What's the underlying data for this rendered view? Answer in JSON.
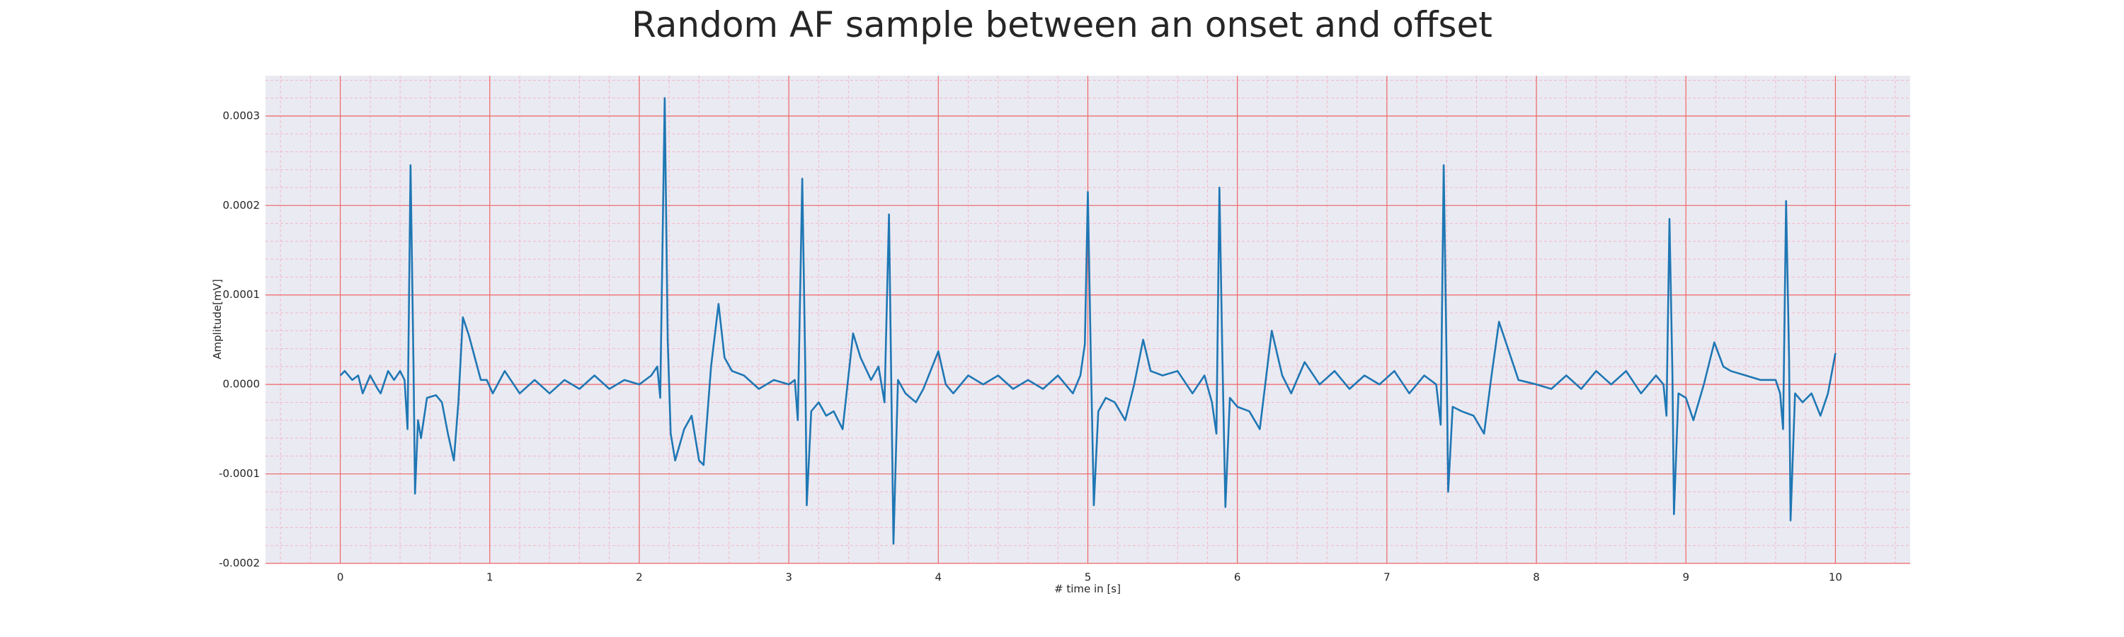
{
  "chart_data": {
    "type": "line",
    "title": "Random AF sample between an onset and offset",
    "xlabel": "# time in [s]",
    "ylabel": "Amplitude[mV]",
    "color": "#1f77b4",
    "background": "#eaeaf2",
    "grid": true,
    "grid_color": "#ee6666",
    "minor_grid": true,
    "minor_grid_color": "#f2b8c6",
    "xlim": [
      -0.5,
      10.5
    ],
    "ylim": [
      -0.0002,
      0.000345
    ],
    "xticks": [
      0,
      1,
      2,
      3,
      4,
      5,
      6,
      7,
      8,
      9,
      10
    ],
    "yticks": [
      {
        "value": -0.0002,
        "label": "-0.0002"
      },
      {
        "value": -0.0001,
        "label": "-0.0001"
      },
      {
        "value": 0,
        "label": "0.0000"
      },
      {
        "value": 0.0001,
        "label": "0.0001"
      },
      {
        "value": 0.0002,
        "label": "0.0002"
      },
      {
        "value": 0.0003,
        "label": "0.0003"
      }
    ],
    "x": [
      0,
      0.03,
      0.08,
      0.12,
      0.15,
      0.2,
      0.25,
      0.27,
      0.32,
      0.36,
      0.4,
      0.43,
      0.45,
      0.47,
      0.49,
      0.5,
      0.52,
      0.54,
      0.58,
      0.64,
      0.68,
      0.72,
      0.76,
      0.79,
      0.82,
      0.86,
      0.9,
      0.94,
      0.98,
      1.02,
      1.1,
      1.2,
      1.3,
      1.4,
      1.5,
      1.6,
      1.7,
      1.8,
      1.9,
      2.0,
      2.08,
      2.12,
      2.14,
      2.17,
      2.19,
      2.21,
      2.24,
      2.3,
      2.35,
      2.4,
      2.43,
      2.48,
      2.53,
      2.57,
      2.62,
      2.7,
      2.8,
      2.9,
      3.0,
      3.04,
      3.06,
      3.09,
      3.11,
      3.12,
      3.15,
      3.2,
      3.25,
      3.3,
      3.36,
      3.43,
      3.48,
      3.55,
      3.6,
      3.64,
      3.67,
      3.7,
      3.73,
      3.78,
      3.85,
      3.9,
      4.0,
      4.05,
      4.1,
      4.2,
      4.3,
      4.4,
      4.5,
      4.6,
      4.7,
      4.8,
      4.9,
      4.95,
      4.98,
      5.0,
      5.02,
      5.04,
      5.07,
      5.12,
      5.18,
      5.25,
      5.31,
      5.37,
      5.42,
      5.5,
      5.6,
      5.7,
      5.78,
      5.83,
      5.86,
      5.88,
      5.9,
      5.92,
      5.95,
      6.0,
      6.08,
      6.15,
      6.23,
      6.3,
      6.36,
      6.45,
      6.55,
      6.65,
      6.75,
      6.85,
      6.95,
      7.05,
      7.15,
      7.25,
      7.33,
      7.36,
      7.38,
      7.4,
      7.41,
      7.44,
      7.5,
      7.58,
      7.65,
      7.7,
      7.75,
      7.8,
      7.88,
      8.0,
      8.1,
      8.2,
      8.3,
      8.4,
      8.5,
      8.6,
      8.7,
      8.8,
      8.85,
      8.87,
      8.89,
      8.91,
      8.92,
      8.95,
      9.0,
      9.05,
      9.12,
      9.19,
      9.25,
      9.3,
      9.4,
      9.5,
      9.6,
      9.63,
      9.65,
      9.67,
      9.69,
      9.7,
      9.73,
      9.78,
      9.84,
      9.9,
      9.95,
      10.0
    ],
    "values": [
      1e-05,
      1.5e-05,
      5e-06,
      1e-05,
      -1e-05,
      1e-05,
      -5e-06,
      -1e-05,
      1.5e-05,
      5e-06,
      1.5e-05,
      5e-06,
      -5e-05,
      0.000245,
      2e-05,
      -0.000122,
      -4e-05,
      -6e-05,
      -1.5e-05,
      -1.2e-05,
      -2e-05,
      -5.5e-05,
      -8.5e-05,
      -2e-05,
      7.5e-05,
      5.5e-05,
      3e-05,
      5e-06,
      5e-06,
      -1e-05,
      1.5e-05,
      -1e-05,
      5e-06,
      -1e-05,
      5e-06,
      -5e-06,
      1e-05,
      -5e-06,
      5e-06,
      0.0,
      1e-05,
      2e-05,
      -1.5e-05,
      0.00032,
      5e-05,
      -5.5e-05,
      -8.5e-05,
      -5e-05,
      -3.5e-05,
      -8.5e-05,
      -9e-05,
      2e-05,
      9e-05,
      3e-05,
      1.5e-05,
      1e-05,
      -5e-06,
      5e-06,
      0.0,
      5e-06,
      -4e-05,
      0.00023,
      2e-05,
      -0.000135,
      -3e-05,
      -2e-05,
      -3.5e-05,
      -3e-05,
      -5e-05,
      5.7e-05,
      3e-05,
      5e-06,
      2e-05,
      -2e-05,
      0.00019,
      -0.000178,
      5e-06,
      -1e-05,
      -2e-05,
      -5e-06,
      3.7e-05,
      0.0,
      -1e-05,
      1e-05,
      0.0,
      1e-05,
      -5e-06,
      5e-06,
      -5e-06,
      1e-05,
      -1e-05,
      1e-05,
      4.5e-05,
      0.000215,
      3e-05,
      -0.000135,
      -3e-05,
      -1.5e-05,
      -2e-05,
      -4e-05,
      0.0,
      5e-05,
      1.5e-05,
      1e-05,
      1.5e-05,
      -1e-05,
      1e-05,
      -2e-05,
      -5.5e-05,
      0.00022,
      3e-05,
      -0.000137,
      -1.5e-05,
      -2.5e-05,
      -3e-05,
      -5e-05,
      6e-05,
      1e-05,
      -1e-05,
      2.5e-05,
      0.0,
      1.5e-05,
      -5e-06,
      1e-05,
      0.0,
      1.5e-05,
      -1e-05,
      1e-05,
      0.0,
      -4.5e-05,
      0.000245,
      2e-05,
      -0.00012,
      -2.5e-05,
      -3e-05,
      -3.5e-05,
      -5.5e-05,
      1e-05,
      7e-05,
      4.5e-05,
      5e-06,
      0.0,
      -5e-06,
      1e-05,
      -5e-06,
      1.5e-05,
      0.0,
      1.5e-05,
      -1e-05,
      1e-05,
      0.0,
      -3.5e-05,
      0.000185,
      1e-05,
      -0.000145,
      -1e-05,
      -1.5e-05,
      -4e-05,
      0.0,
      4.7e-05,
      2e-05,
      1.5e-05,
      1e-05,
      5e-06,
      5e-06,
      -1e-05,
      -5e-05,
      0.000205,
      3e-05,
      -0.000152,
      -1e-05,
      -2e-05,
      -1e-05,
      -3.5e-05,
      -1e-05,
      3.5e-05
    ]
  }
}
